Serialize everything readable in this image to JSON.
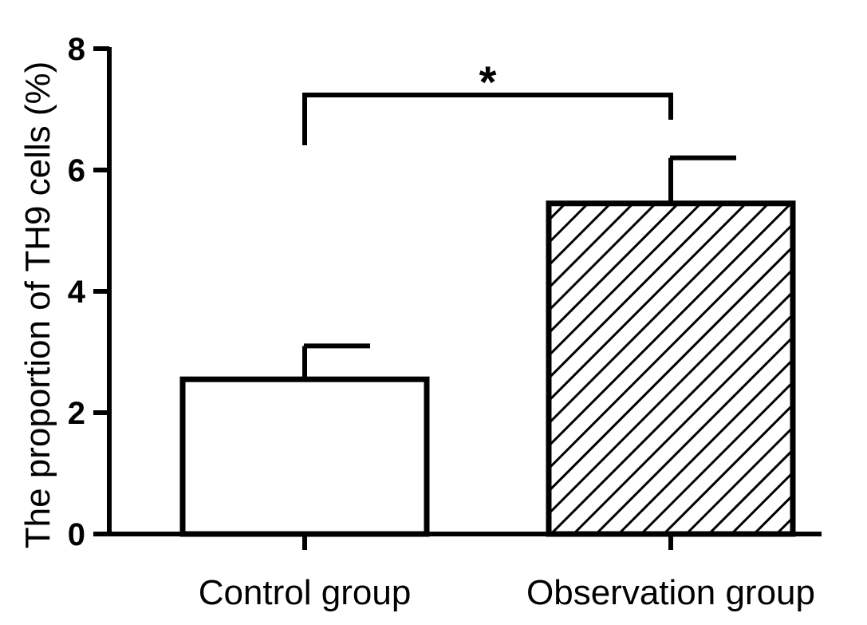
{
  "chart_data": {
    "type": "bar",
    "categories": [
      "Control group",
      "Observation group"
    ],
    "series": [
      {
        "values": [
          2.55,
          5.45
        ],
        "error_upper": [
          0.55,
          0.75
        ],
        "fill_patterns": [
          "none",
          "diagonal-hatch"
        ]
      }
    ],
    "title": "",
    "xlabel": "",
    "ylabel": "The proportion of TH9 cells (%)",
    "ylim": [
      0,
      8
    ],
    "yticks": [
      0,
      2,
      4,
      6,
      8
    ],
    "grid": false,
    "legend": "none",
    "annotations": [
      {
        "type": "significance-bracket",
        "between": [
          "Control group",
          "Observation group"
        ],
        "text": "*"
      }
    ],
    "colors": {
      "stroke": "#000000",
      "fill": "#ffffff",
      "hatch": "#000000"
    }
  }
}
